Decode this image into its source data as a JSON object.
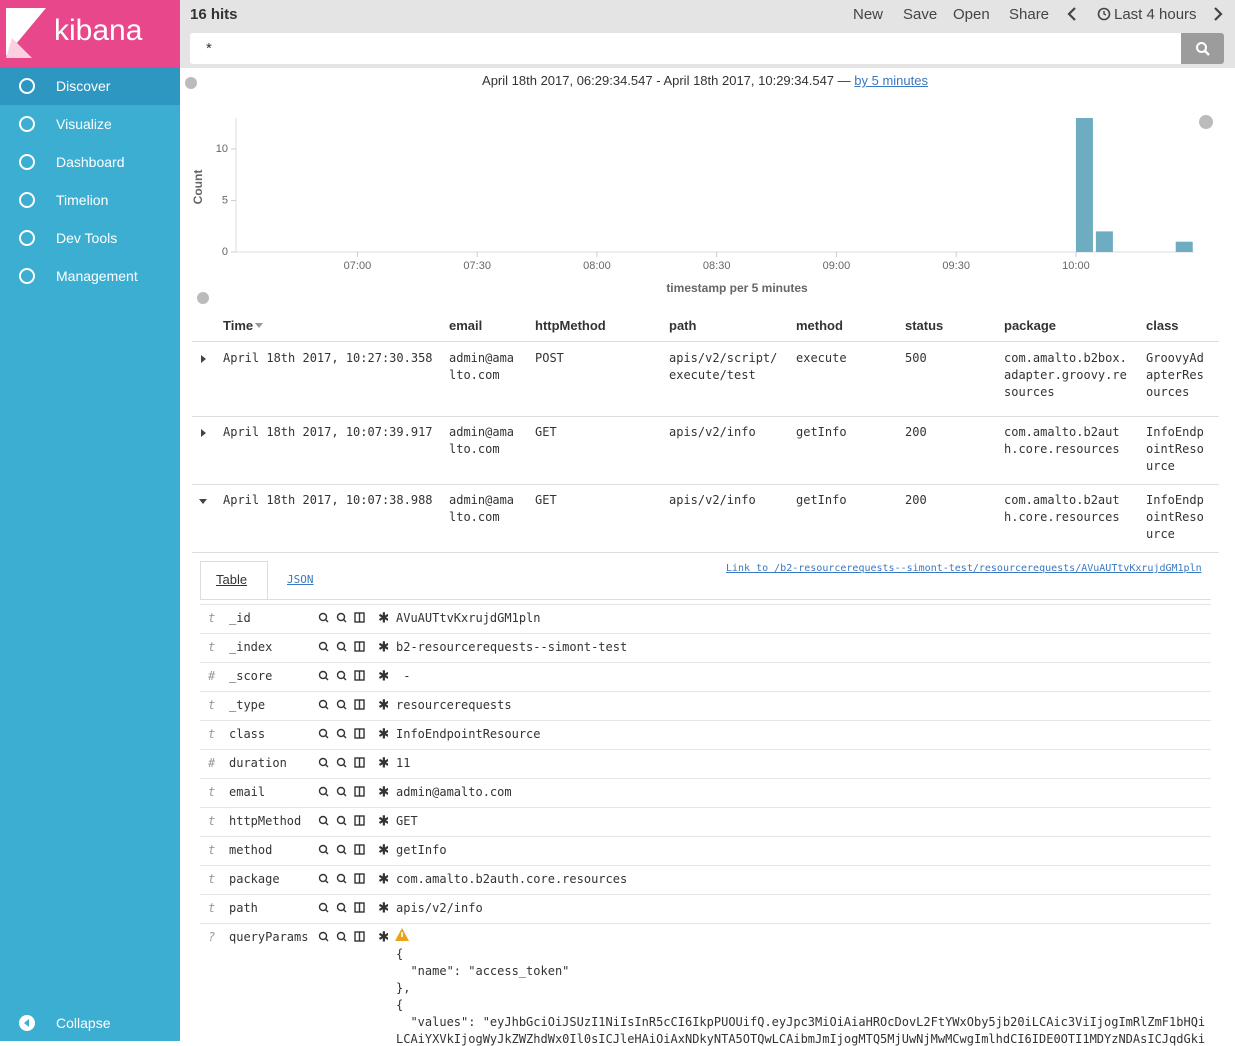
{
  "sidebar": {
    "logo": "kibana",
    "nav": [
      "Discover",
      "Visualize",
      "Dashboard",
      "Timelion",
      "Dev Tools",
      "Management"
    ],
    "collapse": "Collapse"
  },
  "topbar": {
    "hits": "16 hits",
    "actions": [
      "New",
      "Save",
      "Open",
      "Share"
    ],
    "time_picker": "Last 4 hours"
  },
  "search": {
    "query": "*"
  },
  "time_range": {
    "text": "April 18th 2017, 06:29:34.547 - April 18th 2017, 10:29:34.547 —",
    "interval": "by 5 minutes"
  },
  "chart_data": {
    "type": "bar",
    "ylabel": "Count",
    "xlabel": "timestamp per 5 minutes",
    "color": "#6eadc1",
    "x": [
      600,
      605,
      625
    ],
    "values": [
      13,
      2,
      1
    ],
    "xlim": [
      389.576,
      629.576
    ],
    "xticks": [
      {
        "value": 420,
        "label": "07:00"
      },
      {
        "value": 450,
        "label": "07:30"
      },
      {
        "value": 480,
        "label": "08:00"
      },
      {
        "value": 510,
        "label": "08:30"
      },
      {
        "value": 540,
        "label": "09:00"
      },
      {
        "value": 570,
        "label": "09:30"
      },
      {
        "value": 600,
        "label": "10:00"
      }
    ],
    "ylim": [
      0,
      13
    ],
    "yticks": [
      0,
      5,
      10
    ],
    "grid": false
  },
  "table": {
    "columns": [
      "Time",
      "email",
      "httpMethod",
      "path",
      "method",
      "status",
      "package",
      "class"
    ],
    "rows": [
      [
        "April 18th 2017, 10:27:30.358",
        "admin@amalto.com",
        "POST",
        "apis/v2/script/execute/test",
        "execute",
        "500",
        "com.amalto.b2box.adapter.groovy.resources",
        "GroovyAdapterResources"
      ],
      [
        "April 18th 2017, 10:07:39.917",
        "admin@amalto.com",
        "GET",
        "apis/v2/info",
        "getInfo",
        "200",
        "com.amalto.b2auth.core.resources",
        "InfoEndpointResource"
      ],
      [
        "April 18th 2017, 10:07:38.988",
        "admin@amalto.com",
        "GET",
        "apis/v2/info",
        "getInfo",
        "200",
        "com.amalto.b2auth.core.resources",
        "InfoEndpointResource"
      ]
    ]
  },
  "detail": {
    "tabs": [
      "Table",
      "JSON"
    ],
    "link": "Link to /b2-resourcerequests--simont-test/resourcerequests/AVuAUTtvKxrujdGM1pln",
    "fields": [
      {
        "type": "t",
        "name": "_id",
        "value": "AVuAUTtvKxrujdGM1pln"
      },
      {
        "type": "t",
        "name": "_index",
        "value": "b2-resourcerequests--simont-test"
      },
      {
        "type": "#",
        "name": "_score",
        "value": " -"
      },
      {
        "type": "t",
        "name": "_type",
        "value": "resourcerequests"
      },
      {
        "type": "t",
        "name": "class",
        "value": "InfoEndpointResource"
      },
      {
        "type": "#",
        "name": "duration",
        "value": "11"
      },
      {
        "type": "t",
        "name": "email",
        "value": "admin@amalto.com"
      },
      {
        "type": "t",
        "name": "httpMethod",
        "value": "GET"
      },
      {
        "type": "t",
        "name": "method",
        "value": "getInfo"
      },
      {
        "type": "t",
        "name": "package",
        "value": "com.amalto.b2auth.core.resources"
      },
      {
        "type": "t",
        "name": "path",
        "value": "apis/v2/info"
      }
    ],
    "query_params": {
      "type": "?",
      "name": "queryParams",
      "lines": [
        "{",
        "  \"name\": \"access_token\"",
        "},",
        "{",
        "  \"values\": \"eyJhbGciOiJSUzI1NiIsInR5cCI6IkpPUOUifQ.eyJpc3MiOiAiaHROcDovL2FtYWxOby5jb20iLCAic3ViIjogImRlZmF1bHQi",
        "LCAiYXVkIjogWyJkZWZhdWx0Il0sICJleHAiOiAxNDkyNTA5OTQwLCAibmJmIjogMTQ5MjUwNjMwMCwgImlhdCI6IDE0OTI1MDYzNDAsICJqdGki"
      ]
    }
  }
}
